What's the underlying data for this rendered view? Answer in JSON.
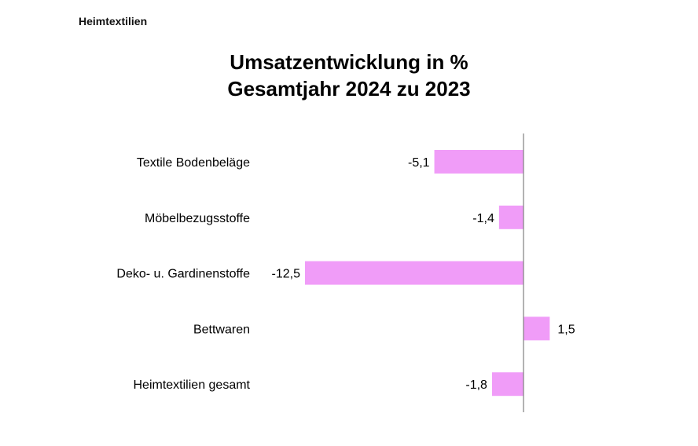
{
  "header": "Heimtextilien",
  "chart_data": {
    "type": "bar",
    "orientation": "horizontal",
    "title": [
      "Umsatzentwicklung in %",
      "Gesamtjahr 2024 zu 2023"
    ],
    "categories": [
      "Textile Bodenbeläge",
      "Möbelbezugsstoffe",
      "Deko- u. Gardinenstoffe",
      "Bettwaren",
      "Heimtextilien gesamt"
    ],
    "values": [
      -5.1,
      -1.4,
      -12.5,
      1.5,
      -1.8
    ],
    "labels": [
      "-5,1",
      "-1,4",
      "-12,5",
      "1,5",
      "-1,8"
    ],
    "xlabel": "",
    "ylabel": "",
    "grid": false,
    "color": "#F09CF8"
  }
}
